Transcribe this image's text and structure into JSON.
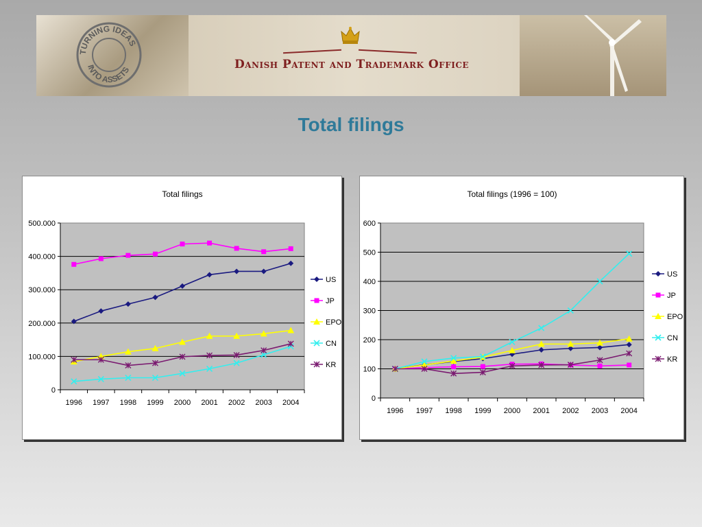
{
  "header": {
    "stamp_text_top": "TURNING IDEAS",
    "stamp_text_bottom": "INTO ASSETS",
    "org_name": "Danish Patent and Trademark Office"
  },
  "slide": {
    "title": "Total filings"
  },
  "colors": {
    "US": "#1a1a80",
    "JP": "#ff00ff",
    "EPO": "#ffff00",
    "CN": "#33eeee",
    "KR": "#7a1a70",
    "plot_bg": "#c0c0c0",
    "title_text": "#2f7a99",
    "org_text": "#7e1f1f"
  },
  "chart_data": [
    {
      "type": "line",
      "title": "Total filings",
      "xlabel": "",
      "ylabel": "",
      "categories": [
        "1996",
        "1997",
        "1998",
        "1999",
        "2000",
        "2001",
        "2002",
        "2003",
        "2004"
      ],
      "ylim": [
        0,
        500000
      ],
      "yticks": [
        0,
        100000,
        200000,
        300000,
        400000,
        500000
      ],
      "ytick_labels": [
        "0",
        "100.000",
        "200.000",
        "300.000",
        "400.000",
        "500.000"
      ],
      "grid": true,
      "legend": "right",
      "series": [
        {
          "name": "US",
          "marker": "diamond",
          "values": [
            205000,
            236000,
            257000,
            277000,
            311000,
            345000,
            355000,
            355000,
            379000
          ]
        },
        {
          "name": "JP",
          "marker": "square",
          "values": [
            376000,
            393000,
            403000,
            407000,
            437000,
            440000,
            424000,
            414000,
            423000
          ]
        },
        {
          "name": "EPO",
          "marker": "triangle",
          "values": [
            84000,
            100000,
            114000,
            124000,
            143000,
            161000,
            161000,
            168000,
            178000
          ]
        },
        {
          "name": "CN",
          "marker": "x",
          "values": [
            25000,
            32000,
            36000,
            36000,
            49000,
            63000,
            80000,
            105000,
            130000
          ]
        },
        {
          "name": "KR",
          "marker": "star",
          "values": [
            90000,
            90000,
            73000,
            80000,
            99000,
            103000,
            104000,
            118000,
            138000
          ]
        }
      ]
    },
    {
      "type": "line",
      "title": "Total filings (1996 = 100)",
      "xlabel": "",
      "ylabel": "",
      "categories": [
        "1996",
        "1997",
        "1998",
        "1999",
        "2000",
        "2001",
        "2002",
        "2003",
        "2004"
      ],
      "ylim": [
        0,
        600
      ],
      "yticks": [
        0,
        100,
        200,
        300,
        400,
        500,
        600
      ],
      "ytick_labels": [
        "0",
        "100",
        "200",
        "300",
        "400",
        "500",
        "600"
      ],
      "grid": true,
      "legend": "right",
      "series": [
        {
          "name": "US",
          "marker": "diamond",
          "values": [
            100,
            114,
            125,
            135,
            150,
            165,
            170,
            173,
            183
          ]
        },
        {
          "name": "JP",
          "marker": "square",
          "values": [
            100,
            104,
            107,
            108,
            116,
            117,
            113,
            110,
            113
          ]
        },
        {
          "name": "EPO",
          "marker": "triangle",
          "values": [
            100,
            113,
            127,
            140,
            163,
            185,
            185,
            189,
            203
          ]
        },
        {
          "name": "CN",
          "marker": "x",
          "values": [
            100,
            125,
            137,
            142,
            192,
            240,
            300,
            400,
            495
          ]
        },
        {
          "name": "KR",
          "marker": "star",
          "values": [
            100,
            100,
            84,
            88,
            110,
            113,
            114,
            130,
            153
          ]
        }
      ]
    }
  ]
}
